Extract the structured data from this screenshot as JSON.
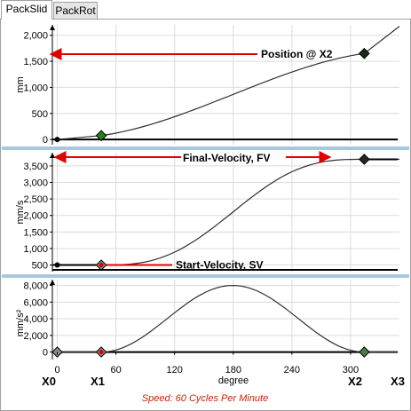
{
  "tabs": [
    {
      "label": "PackSlid",
      "active": true
    },
    {
      "label": "PackRot",
      "active": false
    }
  ],
  "chart_data": [
    {
      "type": "line",
      "ylabel": "mm",
      "yticks": [
        "0",
        "500",
        "1,000",
        "1,500",
        "2,000"
      ],
      "ylim": [
        -100,
        2200
      ],
      "x": [
        0,
        45,
        314,
        350
      ],
      "points": [
        {
          "x": 0,
          "y": 0
        },
        {
          "x": 45,
          "y": 75
        },
        {
          "x": 314,
          "y": 1650
        }
      ],
      "annotation": "Position @ X2"
    },
    {
      "type": "line",
      "ylabel": "mm/s",
      "yticks": [
        "500",
        "1,000",
        "1,500",
        "2,000",
        "2,500",
        "3,000",
        "3,500"
      ],
      "ylim": [
        300,
        3900
      ],
      "start_velocity": 500,
      "final_velocity": 3700,
      "annotations": [
        "Final-Velocity, FV",
        "Start-Velocity, SV"
      ]
    },
    {
      "type": "line",
      "ylabel": "mm/s²",
      "yticks": [
        "0",
        "2,000",
        "4,000",
        "6,000",
        "8,000"
      ],
      "ylim": [
        -900,
        8700
      ],
      "peak": 8000,
      "xlabel": "degree",
      "xticks": [
        "0",
        "60",
        "120",
        "180",
        "240",
        "300"
      ],
      "xlim": [
        -5,
        350
      ]
    }
  ],
  "markers": [
    "X0",
    "X1",
    "X2",
    "X3"
  ],
  "footer": "Speed: 60 Cycles Per Minute",
  "colors": {
    "arrow": "#e00000",
    "separator": "#a8c8e0",
    "curve": "#303030",
    "footer": "#cc2200"
  }
}
